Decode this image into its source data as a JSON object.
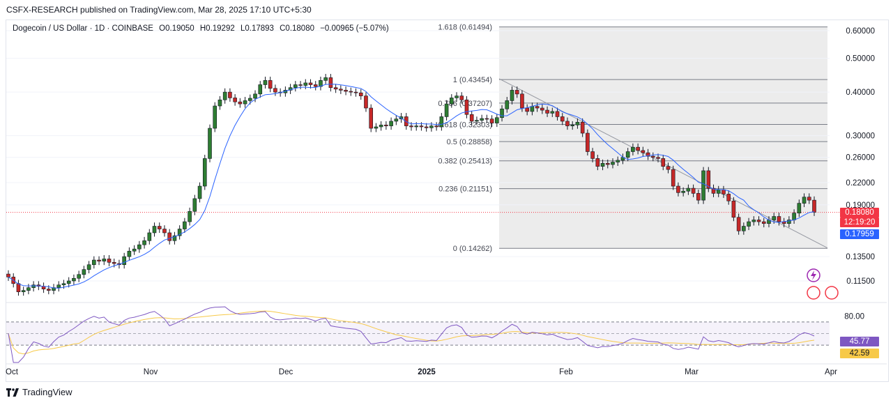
{
  "header": {
    "publisher_line": "CSFX-RESEARCH published on TradingView.com, Mar 28, 2025 17:10 UTC+5:30"
  },
  "legend": {
    "symbol": "Dogecoin / US Dollar · 1D · COINBASE",
    "open": "O0.19050",
    "high": "H0.19292",
    "low": "L0.17893",
    "close": "C0.18080",
    "change": "−0.00965 (−5.07%)"
  },
  "price_axis": {
    "labels": [
      "0.60000",
      "0.50000",
      "0.40000",
      "0.30000",
      "0.26000",
      "0.22000",
      "0.19000",
      "0.13500",
      "0.11500"
    ],
    "last_price": "0.18080",
    "countdown": "12:19:20",
    "ma_value": "0.17959",
    "last_price_color": "#f23645",
    "ma_color": "#2962ff"
  },
  "rsi_axis": {
    "level_label": "80.00",
    "rsi_value": "45.77",
    "rsi_ma_value": "42.59",
    "rsi_color": "#7e57c2",
    "rsi_ma_color": "#f7c948"
  },
  "time_axis": {
    "labels": [
      "Oct",
      "Nov",
      "Dec",
      "2025",
      "Feb",
      "Mar",
      "Apr"
    ]
  },
  "fib_levels": [
    {
      "label": "1.618 (0.61494)"
    },
    {
      "label": "1 (0.43454)"
    },
    {
      "label": "0.786 (0.37207)"
    },
    {
      "label": "0.618 (0.32303)"
    },
    {
      "label": "0.5 (0.28858)"
    },
    {
      "label": "0.382 (0.25413)"
    },
    {
      "label": "0.236 (0.21151)"
    },
    {
      "label": "0 (0.14262)"
    }
  ],
  "footer": {
    "brand": "TradingView"
  },
  "chart_data": {
    "type": "candlestick",
    "y_scale": "log",
    "colors": {
      "up": "#26a69a",
      "down": "#ef5350",
      "candle_up": "#2e7d32",
      "candle_down": "#c62828",
      "ma": "#2962ff"
    },
    "fibonacci": [
      {
        "ratio": 1.618,
        "price": 0.61494
      },
      {
        "ratio": 1,
        "price": 0.43454
      },
      {
        "ratio": 0.786,
        "price": 0.37207
      },
      {
        "ratio": 0.618,
        "price": 0.32303
      },
      {
        "ratio": 0.5,
        "price": 0.28858
      },
      {
        "ratio": 0.382,
        "price": 0.25413
      },
      {
        "ratio": 0.236,
        "price": 0.21151
      },
      {
        "ratio": 0,
        "price": 0.14262
      }
    ],
    "ohlc_close_approx": [
      0.118,
      0.113,
      0.107,
      0.108,
      0.11,
      0.112,
      0.111,
      0.109,
      0.108,
      0.11,
      0.112,
      0.113,
      0.115,
      0.117,
      0.12,
      0.124,
      0.128,
      0.132,
      0.131,
      0.133,
      0.13,
      0.129,
      0.128,
      0.135,
      0.14,
      0.142,
      0.146,
      0.15,
      0.158,
      0.165,
      0.162,
      0.158,
      0.15,
      0.155,
      0.162,
      0.17,
      0.182,
      0.198,
      0.215,
      0.258,
      0.315,
      0.365,
      0.38,
      0.4,
      0.385,
      0.375,
      0.37,
      0.378,
      0.384,
      0.395,
      0.42,
      0.432,
      0.41,
      0.4,
      0.398,
      0.405,
      0.412,
      0.42,
      0.418,
      0.425,
      0.42,
      0.415,
      0.432,
      0.44,
      0.412,
      0.408,
      0.405,
      0.402,
      0.4,
      0.398,
      0.39,
      0.36,
      0.315,
      0.318,
      0.322,
      0.32,
      0.33,
      0.335,
      0.34,
      0.32,
      0.318,
      0.32,
      0.318,
      0.316,
      0.32,
      0.318,
      0.34,
      0.37,
      0.385,
      0.39,
      0.38,
      0.345,
      0.33,
      0.332,
      0.336,
      0.335,
      0.326,
      0.338,
      0.358,
      0.378,
      0.405,
      0.395,
      0.36,
      0.352,
      0.364,
      0.36,
      0.355,
      0.348,
      0.352,
      0.34,
      0.33,
      0.32,
      0.322,
      0.328,
      0.305,
      0.27,
      0.258,
      0.245,
      0.25,
      0.248,
      0.252,
      0.255,
      0.26,
      0.27,
      0.278,
      0.272,
      0.268,
      0.262,
      0.26,
      0.258,
      0.245,
      0.24,
      0.215,
      0.206,
      0.208,
      0.212,
      0.205,
      0.196,
      0.238,
      0.212,
      0.205,
      0.21,
      0.204,
      0.195,
      0.175,
      0.16,
      0.165,
      0.17,
      0.172,
      0.17,
      0.168,
      0.172,
      0.176,
      0.17,
      0.168,
      0.172,
      0.18,
      0.192,
      0.2,
      0.196,
      0.181
    ],
    "fib_date_range": [
      "2025-01-18",
      "2025-03-28"
    ],
    "x_ticks": [
      "Oct",
      "Nov",
      "Dec",
      "2025",
      "Feb",
      "Mar",
      "Apr"
    ],
    "y_ticks": [
      0.6,
      0.5,
      0.4,
      0.3,
      0.26,
      0.22,
      0.19,
      0.135,
      0.115
    ],
    "last_close": 0.1808,
    "ma_last": 0.17959,
    "rsi": {
      "value": 45.77,
      "ma": 42.59,
      "levels": [
        70,
        30
      ],
      "label_level": 80
    }
  }
}
